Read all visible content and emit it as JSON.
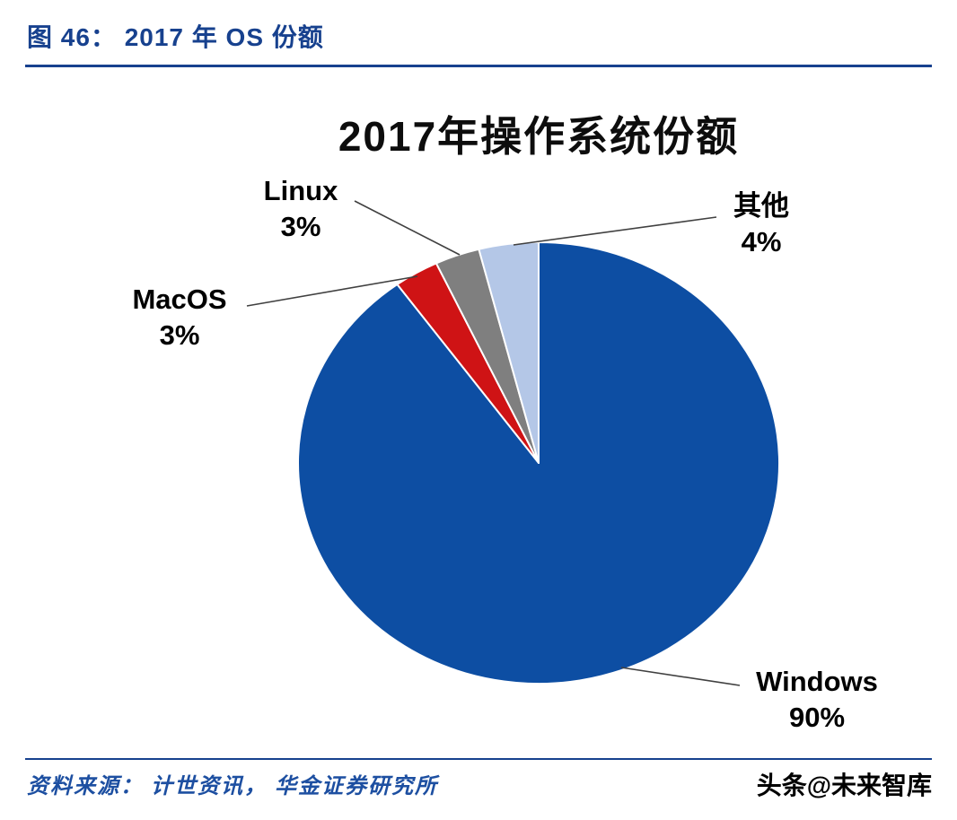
{
  "header": {
    "title": "图 46： 2017 年 OS 份额"
  },
  "chart_data": {
    "type": "pie",
    "title": "2017年操作系统份额",
    "legend_position": "none",
    "total": 100,
    "slices": [
      {
        "name": "Windows",
        "value": 90,
        "pct_label": "90%",
        "color": "#0d4ea3"
      },
      {
        "name": "MacOS",
        "value": 3,
        "pct_label": "3%",
        "color": "#cf1315"
      },
      {
        "name": "Linux",
        "value": 3,
        "pct_label": "3%",
        "color": "#7f7f7f"
      },
      {
        "name": "其他",
        "value": 4,
        "pct_label": "4%",
        "color": "#b4c7e7"
      }
    ]
  },
  "footer": {
    "source": "资料来源： 计世资讯， 华金证券研究所",
    "watermark": "头条@未来智库"
  }
}
